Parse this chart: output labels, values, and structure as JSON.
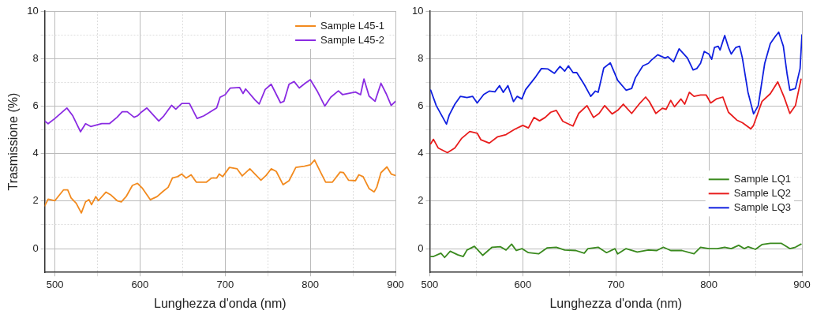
{
  "chart_data": [
    {
      "type": "line",
      "xlabel": "Lunghezza d'onda (nm)",
      "ylabel": "Trasmissione (%)",
      "xlim": [
        488,
        900
      ],
      "ylim": [
        -1,
        10
      ],
      "xticks": [
        500,
        {
          "value": 550,
          "label": null
        },
        600,
        {
          "value": 650,
          "label": null
        },
        700,
        {
          "value": 750,
          "label": null
        },
        800,
        {
          "value": 850,
          "label": null
        },
        900
      ],
      "yticks": [
        0,
        {
          "value": 1,
          "label": null
        },
        2,
        {
          "value": 3,
          "label": null
        },
        4,
        {
          "value": 5,
          "label": null
        },
        6,
        {
          "value": 7,
          "label": null
        },
        8,
        {
          "value": 9,
          "label": null
        },
        10
      ],
      "grid": true,
      "legend": "top right",
      "marker": "none",
      "line_style": "solid",
      "series": [
        {
          "name": "Sample L45-1",
          "color": "#f28a1e",
          "x": [
            488,
            492,
            500,
            510,
            515,
            519,
            525,
            531,
            536,
            540,
            543,
            548,
            551,
            560,
            566,
            573,
            578,
            584,
            591,
            597,
            603,
            612,
            620,
            627,
            633,
            638,
            644,
            649,
            654,
            660,
            666,
            672,
            678,
            684,
            690,
            693,
            697,
            705,
            714,
            720,
            729,
            735,
            742,
            748,
            754,
            760,
            768,
            775,
            783,
            793,
            800,
            805,
            812,
            818,
            826,
            835,
            839,
            845,
            853,
            857,
            862,
            869,
            875,
            878,
            883,
            890,
            895,
            900
          ],
          "values": [
            1.8,
            2.08,
            2.02,
            2.47,
            2.47,
            2.13,
            1.91,
            1.5,
            1.97,
            2.06,
            1.85,
            2.19,
            2.02,
            2.38,
            2.25,
            2.02,
            1.97,
            2.21,
            2.66,
            2.75,
            2.53,
            2.06,
            2.19,
            2.41,
            2.58,
            2.97,
            3.03,
            3.14,
            2.97,
            3.11,
            2.8,
            2.8,
            2.8,
            2.97,
            2.97,
            3.14,
            3.03,
            3.42,
            3.36,
            3.06,
            3.36,
            3.14,
            2.88,
            3.08,
            3.36,
            3.25,
            2.69,
            2.86,
            3.42,
            3.47,
            3.53,
            3.73,
            3.22,
            2.8,
            2.8,
            3.22,
            3.2,
            2.88,
            2.86,
            3.11,
            3.03,
            2.53,
            2.39,
            2.58,
            3.2,
            3.44,
            3.14,
            3.08
          ]
        },
        {
          "name": "Sample L45-2",
          "color": "#8a2be2",
          "x": [
            488,
            492,
            500,
            514,
            521,
            530,
            536,
            542,
            555,
            564,
            573,
            579,
            585,
            593,
            597,
            602,
            608,
            612,
            622,
            628,
            637,
            642,
            649,
            658,
            667,
            675,
            690,
            694,
            700,
            706,
            717,
            721,
            724,
            735,
            740,
            747,
            754,
            765,
            769,
            775,
            781,
            787,
            794,
            800,
            808,
            817,
            824,
            833,
            838,
            845,
            853,
            859,
            863,
            869,
            876,
            883,
            889,
            895,
            900
          ],
          "values": [
            5.37,
            5.26,
            5.48,
            5.92,
            5.59,
            4.92,
            5.26,
            5.14,
            5.26,
            5.26,
            5.53,
            5.76,
            5.76,
            5.53,
            5.59,
            5.76,
            5.92,
            5.76,
            5.37,
            5.59,
            6.03,
            5.87,
            6.11,
            6.11,
            5.48,
            5.59,
            5.92,
            6.37,
            6.48,
            6.76,
            6.78,
            6.53,
            6.72,
            6.26,
            6.09,
            6.7,
            6.92,
            6.14,
            6.2,
            6.92,
            7.03,
            6.76,
            6.96,
            7.11,
            6.64,
            6.0,
            6.37,
            6.64,
            6.48,
            6.53,
            6.59,
            6.48,
            7.14,
            6.42,
            6.2,
            6.96,
            6.53,
            6.03,
            6.2
          ]
        }
      ]
    },
    {
      "type": "line",
      "xlabel": "Lunghezza d'onda (nm)",
      "xlim": [
        500,
        900
      ],
      "ylim": [
        -1,
        10
      ],
      "xticks": [
        500,
        {
          "value": 550,
          "label": null
        },
        600,
        {
          "value": 650,
          "label": null
        },
        700,
        {
          "value": 750,
          "label": null
        },
        800,
        {
          "value": 850,
          "label": null
        },
        900
      ],
      "yticks": [
        0,
        {
          "value": 1,
          "label": null
        },
        2,
        {
          "value": 3,
          "label": null
        },
        4,
        {
          "value": 5,
          "label": null
        },
        6,
        {
          "value": 7,
          "label": null
        },
        8,
        {
          "value": 9,
          "label": null
        },
        10
      ],
      "grid": true,
      "legend": "bottom right",
      "marker": "none",
      "line_style": "solid",
      "series": [
        {
          "name": "Sample LQ1",
          "color": "#3a8a1e",
          "x": [
            501,
            504,
            512,
            516,
            522,
            530,
            536,
            540,
            548,
            557,
            567,
            576,
            582,
            588,
            593,
            599,
            606,
            617,
            626,
            636,
            645,
            657,
            666,
            670,
            681,
            690,
            699,
            702,
            711,
            723,
            735,
            744,
            751,
            759,
            771,
            784,
            791,
            800,
            809,
            817,
            824,
            832,
            838,
            842,
            850,
            857,
            866,
            878,
            887,
            893,
            899
          ],
          "values": [
            -0.33,
            -0.33,
            -0.19,
            -0.37,
            -0.11,
            -0.26,
            -0.33,
            -0.06,
            0.1,
            -0.28,
            0.06,
            0.08,
            -0.06,
            0.19,
            -0.08,
            0,
            -0.17,
            -0.22,
            0.03,
            0.06,
            -0.06,
            -0.08,
            -0.19,
            0,
            0.06,
            -0.17,
            0,
            -0.22,
            0,
            -0.14,
            -0.06,
            -0.08,
            0.06,
            -0.08,
            -0.08,
            -0.22,
            0.06,
            0,
            0,
            0.06,
            0,
            0.14,
            0,
            0.08,
            -0.03,
            0.17,
            0.22,
            0.22,
            0,
            0.06,
            0.19
          ]
        },
        {
          "name": "Sample LQ2",
          "color": "#e81c1c",
          "x": [
            501,
            504,
            509,
            519,
            527,
            534,
            543,
            551,
            555,
            564,
            573,
            582,
            591,
            600,
            606,
            612,
            618,
            624,
            630,
            636,
            643,
            654,
            660,
            669,
            676,
            682,
            688,
            696,
            702,
            708,
            717,
            726,
            732,
            736,
            743,
            750,
            754,
            759,
            763,
            770,
            774,
            779,
            784,
            791,
            797,
            802,
            808,
            815,
            821,
            830,
            836,
            845,
            848,
            857,
            866,
            874,
            881,
            887,
            893,
            899
          ],
          "values": [
            4.41,
            4.6,
            4.24,
            4.04,
            4.24,
            4.63,
            4.93,
            4.86,
            4.58,
            4.44,
            4.71,
            4.8,
            5.02,
            5.19,
            5.08,
            5.52,
            5.38,
            5.52,
            5.74,
            5.82,
            5.36,
            5.16,
            5.69,
            6.02,
            5.52,
            5.69,
            6.02,
            5.67,
            5.82,
            6.08,
            5.69,
            6.13,
            6.38,
            6.19,
            5.69,
            5.91,
            5.86,
            6.24,
            5.97,
            6.3,
            6.08,
            6.58,
            6.41,
            6.47,
            6.47,
            6.13,
            6.3,
            6.38,
            5.74,
            5.41,
            5.3,
            5.04,
            5.19,
            6.19,
            6.52,
            7.02,
            6.36,
            5.69,
            6.02,
            7.13
          ]
        },
        {
          "name": "Sample LQ3",
          "color": "#1020e0",
          "x": [
            501,
            507,
            518,
            521,
            527,
            533,
            540,
            546,
            551,
            558,
            564,
            570,
            575,
            579,
            584,
            590,
            594,
            599,
            603,
            614,
            620,
            627,
            634,
            640,
            645,
            649,
            654,
            658,
            666,
            673,
            678,
            681,
            687,
            694,
            702,
            711,
            717,
            721,
            729,
            735,
            738,
            745,
            753,
            756,
            762,
            768,
            777,
            783,
            787,
            791,
            795,
            800,
            803,
            806,
            810,
            812,
            817,
            821,
            824,
            829,
            833,
            836,
            842,
            848,
            853,
            860,
            866,
            871,
            875,
            880,
            884,
            887,
            893,
            898,
            900
          ],
          "values": [
            6.67,
            6.02,
            5.24,
            5.63,
            6.08,
            6.41,
            6.36,
            6.41,
            6.13,
            6.49,
            6.63,
            6.6,
            6.86,
            6.58,
            6.86,
            6.19,
            6.41,
            6.3,
            6.69,
            7.24,
            7.58,
            7.56,
            7.38,
            7.67,
            7.47,
            7.69,
            7.41,
            7.41,
            6.91,
            6.41,
            6.63,
            6.58,
            7.6,
            7.82,
            7.08,
            6.67,
            6.74,
            7.19,
            7.69,
            7.8,
            7.93,
            8.16,
            8.02,
            8.08,
            7.86,
            8.41,
            8.02,
            7.52,
            7.58,
            7.8,
            8.3,
            8.19,
            7.97,
            8.47,
            8.52,
            8.36,
            8.97,
            8.47,
            8.19,
            8.47,
            8.52,
            8.02,
            6.58,
            5.67,
            6.02,
            7.8,
            8.63,
            8.91,
            9.11,
            8.52,
            7.36,
            6.67,
            6.74,
            7.58,
            9.0
          ]
        }
      ]
    }
  ]
}
